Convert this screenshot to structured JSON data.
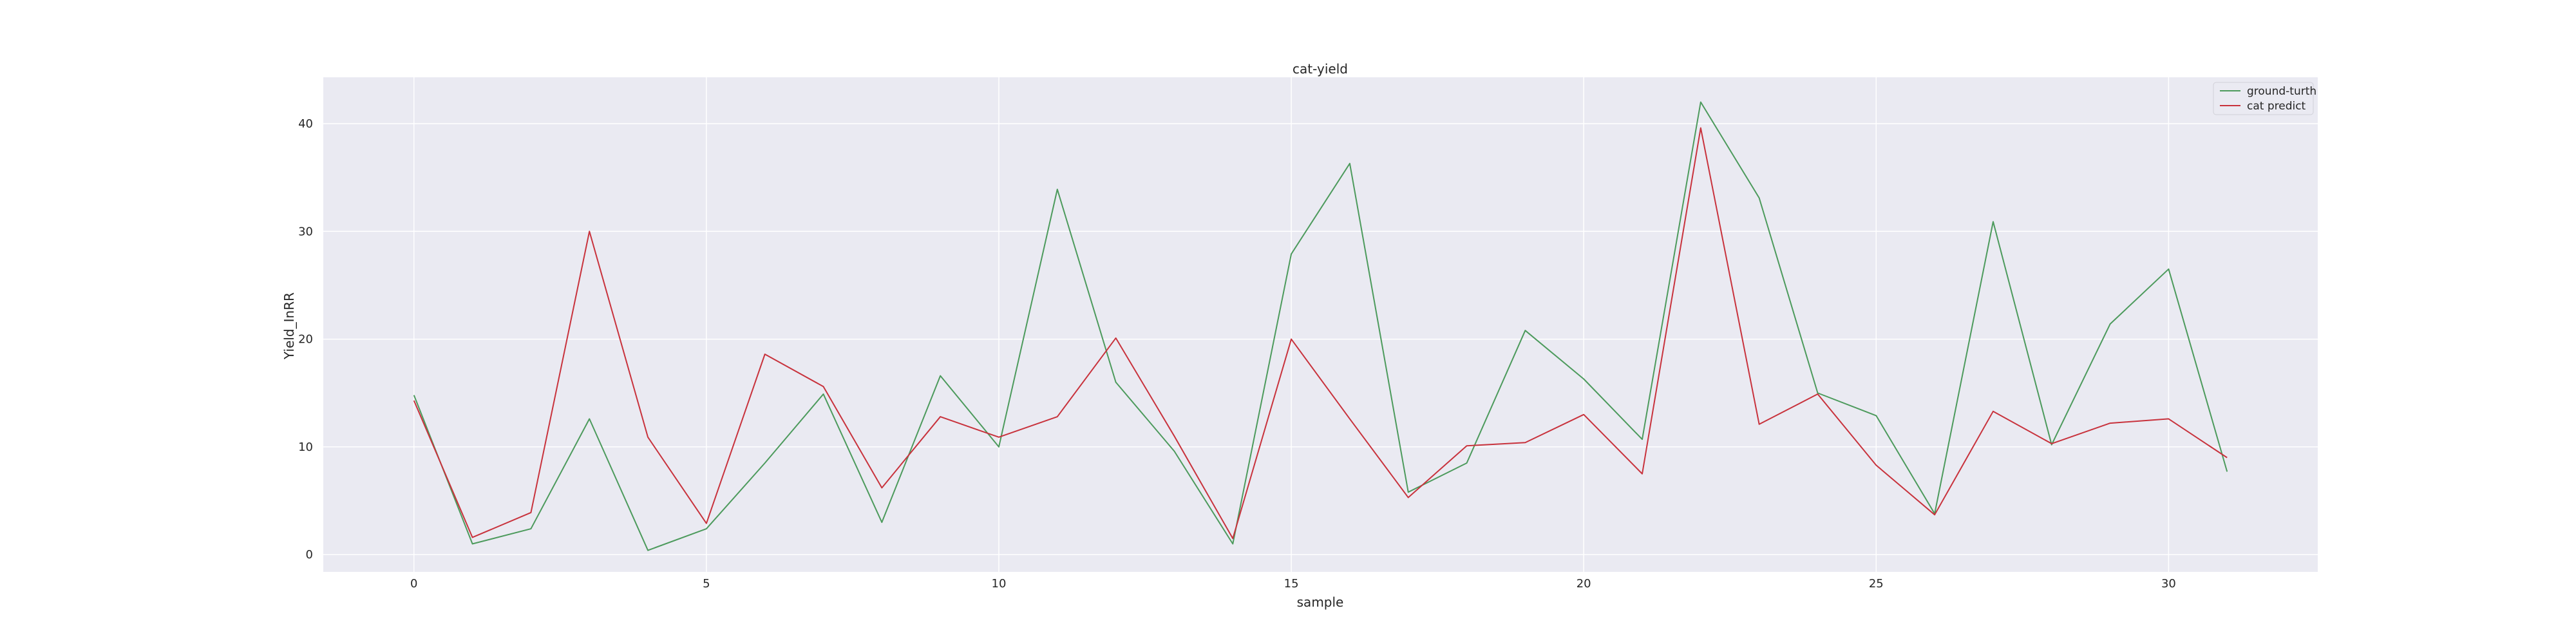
{
  "chart_data": {
    "type": "line",
    "title": "cat-yield",
    "xlabel": "sample",
    "ylabel": "Yield_InRR",
    "xlim": [
      -1.55,
      32.55
    ],
    "ylim": [
      -1.6,
      44.3
    ],
    "xticks": [
      0,
      5,
      10,
      15,
      20,
      25,
      30
    ],
    "yticks": [
      0,
      10,
      20,
      30,
      40
    ],
    "grid": true,
    "legend_position": "top-right",
    "x": [
      0,
      1,
      2,
      3,
      4,
      5,
      6,
      7,
      8,
      9,
      10,
      11,
      12,
      13,
      14,
      15,
      16,
      17,
      18,
      19,
      20,
      21,
      22,
      23,
      24,
      25,
      26,
      27,
      28,
      29,
      30,
      31
    ],
    "series": [
      {
        "name": "ground-turth",
        "color": "#4c9a5c",
        "values": [
          14.8,
          1.0,
          2.4,
          12.6,
          0.4,
          2.4,
          8.5,
          14.9,
          3.0,
          16.6,
          10.0,
          33.9,
          16.0,
          9.6,
          1.0,
          27.9,
          36.3,
          5.8,
          8.5,
          20.8,
          16.3,
          10.7,
          42.0,
          33.1,
          15.0,
          12.9,
          3.8,
          30.9,
          10.2,
          21.4,
          26.5,
          7.7
        ]
      },
      {
        "name": "cat predict",
        "color": "#c8323c",
        "values": [
          14.3,
          1.6,
          3.9,
          30.0,
          10.9,
          2.9,
          18.6,
          15.6,
          6.2,
          12.8,
          10.9,
          12.8,
          20.1,
          11.0,
          1.5,
          20.0,
          12.6,
          5.3,
          10.1,
          10.4,
          13.0,
          7.5,
          39.6,
          12.1,
          14.9,
          8.3,
          3.7,
          13.3,
          10.3,
          12.2,
          12.6,
          9.0
        ]
      }
    ]
  }
}
